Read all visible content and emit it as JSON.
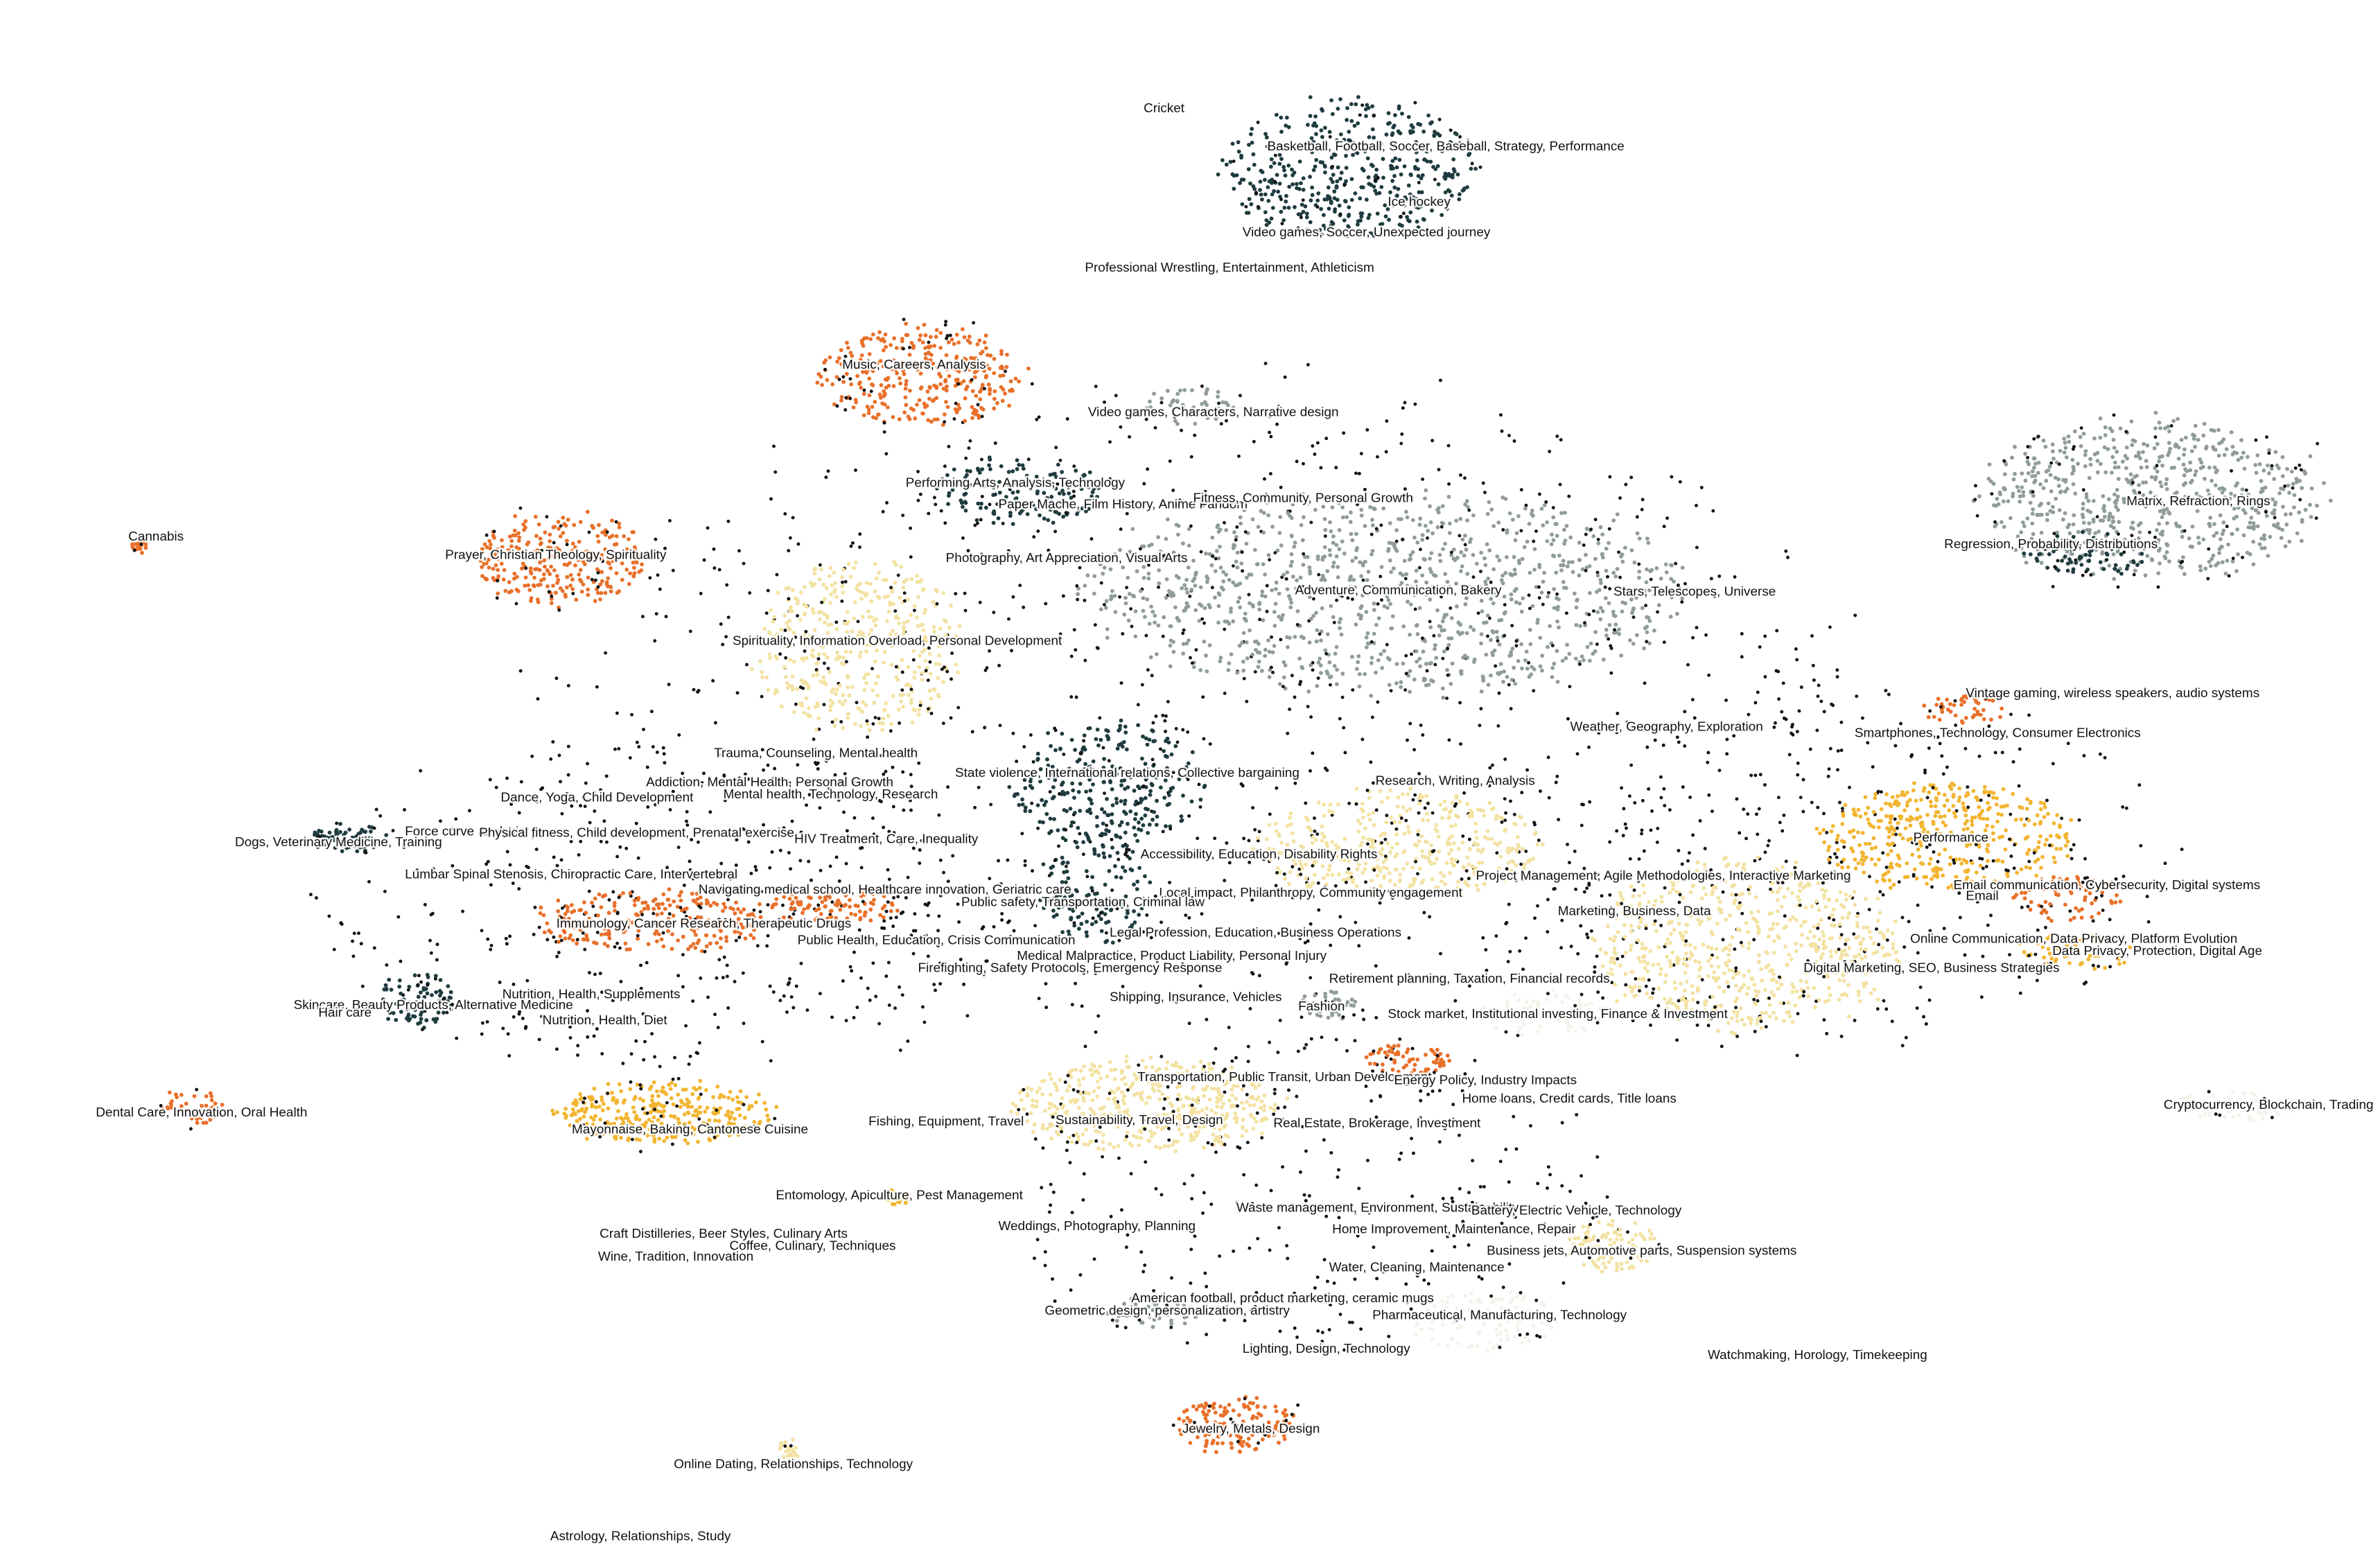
{
  "chart_data": {
    "type": "scatter",
    "title": "",
    "xlabel": "",
    "ylabel": "",
    "grid": false,
    "axes": false,
    "legend": "none",
    "xlim": [
      0,
      1540
    ],
    "ylim": [
      1010,
      0
    ],
    "palette": {
      "dark_teal": "#1f3b3f",
      "slate": "#8f9c9a",
      "orange": "#e8702a",
      "yellow": "#f2b531",
      "cream": "#f3e2a2",
      "pale": "#f2f3ea",
      "outlier": "#111111"
    },
    "clusters": [
      {
        "x": 872,
        "y": 110,
        "rx": 80,
        "ry": 45,
        "color": "dark_teal",
        "weight": 900
      },
      {
        "x": 596,
        "y": 245,
        "rx": 65,
        "ry": 32,
        "color": "orange",
        "weight": 700
      },
      {
        "x": 362,
        "y": 365,
        "rx": 55,
        "ry": 30,
        "color": "orange",
        "weight": 600
      },
      {
        "x": 1390,
        "y": 325,
        "rx": 110,
        "ry": 50,
        "color": "slate",
        "weight": 1400
      },
      {
        "x": 900,
        "y": 385,
        "rx": 190,
        "ry": 65,
        "color": "slate",
        "weight": 2200
      },
      {
        "x": 770,
        "y": 265,
        "rx": 30,
        "ry": 12,
        "color": "slate",
        "weight": 120
      },
      {
        "x": 660,
        "y": 320,
        "rx": 55,
        "ry": 22,
        "color": "dark_teal",
        "weight": 300
      },
      {
        "x": 555,
        "y": 420,
        "rx": 65,
        "ry": 55,
        "color": "cream",
        "weight": 900
      },
      {
        "x": 718,
        "y": 510,
        "rx": 60,
        "ry": 40,
        "color": "dark_teal",
        "weight": 600
      },
      {
        "x": 710,
        "y": 580,
        "rx": 35,
        "ry": 35,
        "color": "dark_teal",
        "weight": 300
      },
      {
        "x": 1260,
        "y": 545,
        "rx": 80,
        "ry": 35,
        "color": "yellow",
        "weight": 900
      },
      {
        "x": 1270,
        "y": 462,
        "rx": 25,
        "ry": 10,
        "color": "orange",
        "weight": 100
      },
      {
        "x": 1130,
        "y": 615,
        "rx": 100,
        "ry": 55,
        "color": "cream",
        "weight": 1400
      },
      {
        "x": 905,
        "y": 550,
        "rx": 90,
        "ry": 35,
        "color": "cream",
        "weight": 900
      },
      {
        "x": 742,
        "y": 720,
        "rx": 85,
        "ry": 30,
        "color": "cream",
        "weight": 1000
      },
      {
        "x": 430,
        "y": 725,
        "rx": 70,
        "ry": 20,
        "color": "yellow",
        "weight": 700
      },
      {
        "x": 420,
        "y": 600,
        "rx": 75,
        "ry": 20,
        "color": "orange",
        "weight": 500
      },
      {
        "x": 540,
        "y": 590,
        "rx": 45,
        "ry": 10,
        "color": "orange",
        "weight": 200
      },
      {
        "x": 800,
        "y": 928,
        "rx": 40,
        "ry": 18,
        "color": "orange",
        "weight": 300
      },
      {
        "x": 910,
        "y": 690,
        "rx": 28,
        "ry": 10,
        "color": "orange",
        "weight": 140
      },
      {
        "x": 1045,
        "y": 810,
        "rx": 30,
        "ry": 18,
        "color": "cream",
        "weight": 200
      },
      {
        "x": 270,
        "y": 650,
        "rx": 25,
        "ry": 18,
        "color": "dark_teal",
        "weight": 180
      },
      {
        "x": 125,
        "y": 720,
        "rx": 20,
        "ry": 12,
        "color": "orange",
        "weight": 80
      },
      {
        "x": 226,
        "y": 545,
        "rx": 25,
        "ry": 10,
        "color": "dark_teal",
        "weight": 120
      },
      {
        "x": 1340,
        "y": 585,
        "rx": 35,
        "ry": 15,
        "color": "orange",
        "weight": 150
      },
      {
        "x": 1340,
        "y": 620,
        "rx": 40,
        "ry": 12,
        "color": "yellow",
        "weight": 120
      },
      {
        "x": 960,
        "y": 860,
        "rx": 45,
        "ry": 20,
        "color": "pale",
        "weight": 250
      },
      {
        "x": 1450,
        "y": 720,
        "rx": 45,
        "ry": 10,
        "color": "pale",
        "weight": 120
      },
      {
        "x": 1000,
        "y": 660,
        "rx": 40,
        "ry": 15,
        "color": "pale",
        "weight": 150
      },
      {
        "x": 860,
        "y": 655,
        "rx": 18,
        "ry": 10,
        "color": "slate",
        "weight": 80
      },
      {
        "x": 745,
        "y": 855,
        "rx": 30,
        "ry": 10,
        "color": "slate",
        "weight": 100
      },
      {
        "x": 1350,
        "y": 360,
        "rx": 40,
        "ry": 15,
        "color": "dark_teal",
        "weight": 150
      },
      {
        "x": 510,
        "y": 945,
        "rx": 8,
        "ry": 8,
        "color": "cream",
        "weight": 30
      },
      {
        "x": 90,
        "y": 356,
        "rx": 6,
        "ry": 4,
        "color": "orange",
        "weight": 15
      },
      {
        "x": 580,
        "y": 780,
        "rx": 10,
        "ry": 5,
        "color": "yellow",
        "weight": 25
      }
    ],
    "outlier_bands": [
      {
        "x": 780,
        "y": 470,
        "rx": 420,
        "ry": 220,
        "weight": 1800
      },
      {
        "x": 1180,
        "y": 560,
        "rx": 230,
        "ry": 120,
        "weight": 600
      },
      {
        "x": 430,
        "y": 590,
        "rx": 230,
        "ry": 110,
        "weight": 700
      },
      {
        "x": 850,
        "y": 780,
        "rx": 200,
        "ry": 100,
        "weight": 500
      }
    ],
    "labels": [
      {
        "text": "Cricket",
        "x": 740,
        "y": 73
      },
      {
        "text": "Basketball, Football, Soccer, Baseball, Strategy, Performance",
        "x": 820,
        "y": 98
      },
      {
        "text": "Ice hockey",
        "x": 898,
        "y": 134
      },
      {
        "text": "Video games, Soccer, Unexpected journey",
        "x": 804,
        "y": 154
      },
      {
        "text": "Professional Wrestling, Entertainment, Athleticism",
        "x": 702,
        "y": 177
      },
      {
        "text": "Music, Careers, Analysis",
        "x": 545,
        "y": 240
      },
      {
        "text": "Video games, Characters, Narrative design",
        "x": 704,
        "y": 271
      },
      {
        "text": "Performing Arts, Analysis, Technology",
        "x": 586,
        "y": 317
      },
      {
        "text": "Paper Mache, Film History, Anime Fandom",
        "x": 646,
        "y": 331
      },
      {
        "text": "Fitness, Community, Personal Growth",
        "x": 772,
        "y": 327
      },
      {
        "text": "Matrix, Refraction, Rings",
        "x": 1376,
        "y": 329
      },
      {
        "text": "Cannabis",
        "x": 83,
        "y": 352
      },
      {
        "text": "Prayer, Christian Theology, Spirituality",
        "x": 288,
        "y": 364
      },
      {
        "text": "Regression, Probability, Distributions",
        "x": 1258,
        "y": 357
      },
      {
        "text": "Photography, Art Appreciation, Visual Arts",
        "x": 612,
        "y": 366
      },
      {
        "text": "Adventure, Communication, Bakery",
        "x": 838,
        "y": 387
      },
      {
        "text": "Stars, Telescopes, Universe",
        "x": 1044,
        "y": 388
      },
      {
        "text": "Spirituality, Information Overload, Personal Development",
        "x": 474,
        "y": 420
      },
      {
        "text": "Vintage gaming, wireless speakers, audio systems",
        "x": 1272,
        "y": 454
      },
      {
        "text": "Weather, Geography, Exploration",
        "x": 1016,
        "y": 476
      },
      {
        "text": "Smartphones, Technology, Consumer Electronics",
        "x": 1200,
        "y": 480
      },
      {
        "text": "Trauma, Counseling, Mental health",
        "x": 462,
        "y": 493
      },
      {
        "text": "State violence, International relations, Collective bargaining",
        "x": 618,
        "y": 506
      },
      {
        "text": "Addiction, Mental Health, Personal Growth",
        "x": 418,
        "y": 512
      },
      {
        "text": "Research, Writing, Analysis",
        "x": 890,
        "y": 511
      },
      {
        "text": "Mental health, Technology, Research",
        "x": 468,
        "y": 520
      },
      {
        "text": "Dance, Yoga, Child Development",
        "x": 324,
        "y": 522
      },
      {
        "text": "Force curve analysis",
        "x": 262,
        "y": 544
      },
      {
        "text": "Physical fitness, Child development, Prenatal exercise",
        "x": 310,
        "y": 545
      },
      {
        "text": "Performance",
        "x": 1238,
        "y": 548
      },
      {
        "text": "HIV Treatment, Care, Inequality",
        "x": 514,
        "y": 549
      },
      {
        "text": "Dogs, Veterinary Medicine, Training",
        "x": 152,
        "y": 551
      },
      {
        "text": "Accessibility, Education, Disability Rights",
        "x": 738,
        "y": 559
      },
      {
        "text": "Lumbar Spinal Stenosis, Chiropractic Care, Intervertebral",
        "x": 262,
        "y": 572
      },
      {
        "text": "Project Management, Agile Methodologies, Interactive Marketing",
        "x": 955,
        "y": 573
      },
      {
        "text": "Email communication, Cybersecurity, Digital systems",
        "x": 1264,
        "y": 579
      },
      {
        "text": "Navigating medical school, Healthcare innovation, Geriatric care",
        "x": 452,
        "y": 582
      },
      {
        "text": "Local impact, Philanthropy, Community engagement",
        "x": 750,
        "y": 584
      },
      {
        "text": "Email",
        "x": 1272,
        "y": 586
      },
      {
        "text": "Public safety, Transportation, Criminal law",
        "x": 622,
        "y": 590
      },
      {
        "text": "Marketing, Business, Data",
        "x": 1008,
        "y": 596
      },
      {
        "text": "Immunology, Cancer Research, Therapeutic Drugs",
        "x": 360,
        "y": 604
      },
      {
        "text": "Legal Profession, Education, Business Operations",
        "x": 718,
        "y": 610
      },
      {
        "text": "Online Communication, Data Privacy, Platform Evolution",
        "x": 1236,
        "y": 614
      },
      {
        "text": "Public Health, Education, Crisis Communication",
        "x": 516,
        "y": 615
      },
      {
        "text": "Data Privacy, Protection, Digital Age",
        "x": 1328,
        "y": 622
      },
      {
        "text": "Medical Malpractice, Product Liability, Personal Injury",
        "x": 658,
        "y": 625
      },
      {
        "text": "Firefighting, Safety Protocols, Emergency Response",
        "x": 594,
        "y": 633
      },
      {
        "text": "Digital Marketing, SEO, Business Strategies",
        "x": 1167,
        "y": 633
      },
      {
        "text": "Retirement planning, Taxation, Financial records",
        "x": 860,
        "y": 640
      },
      {
        "text": "Nutrition, Health, Supplements",
        "x": 325,
        "y": 650
      },
      {
        "text": "Shipping, Insurance, Vehicles",
        "x": 718,
        "y": 652
      },
      {
        "text": "Skincare, Beauty Products, Alternative Medicine",
        "x": 190,
        "y": 657
      },
      {
        "text": "Fashion",
        "x": 840,
        "y": 658
      },
      {
        "text": "Hair care",
        "x": 206,
        "y": 662
      },
      {
        "text": "Stock market, Institutional investing, Finance & Investment",
        "x": 898,
        "y": 663
      },
      {
        "text": "Nutrition, Health, Diet",
        "x": 351,
        "y": 667
      },
      {
        "text": "Transportation, Public Transit, Urban Development",
        "x": 736,
        "y": 704
      },
      {
        "text": "Energy Policy, Industry Impacts",
        "x": 902,
        "y": 706
      },
      {
        "text": "Home loans, Credit cards, Title loans",
        "x": 946,
        "y": 718
      },
      {
        "text": "Cryptocurrency, Blockchain, Trading",
        "x": 1400,
        "y": 722
      },
      {
        "text": "Dental Care, Innovation, Oral Health",
        "x": 62,
        "y": 727
      },
      {
        "text": "Sustainability, Travel, Design",
        "x": 683,
        "y": 732
      },
      {
        "text": "Fishing, Equipment, Travel",
        "x": 562,
        "y": 733
      },
      {
        "text": "Real Estate, Brokerage, Investment",
        "x": 824,
        "y": 734
      },
      {
        "text": "Mayonnaise, Baking, Cantonese Cuisine",
        "x": 370,
        "y": 738
      },
      {
        "text": "Entomology, Apiculture, Pest Management",
        "x": 502,
        "y": 781
      },
      {
        "text": "Waste management, Environment, Sustainability",
        "x": 800,
        "y": 789
      },
      {
        "text": "Battery, Electric Vehicle, Technology",
        "x": 952,
        "y": 791
      },
      {
        "text": "Weddings, Photography, Planning",
        "x": 646,
        "y": 801
      },
      {
        "text": "Home Improvement, Maintenance, Repair",
        "x": 862,
        "y": 803
      },
      {
        "text": "Craft Distilleries, Beer Styles, Culinary Arts",
        "x": 388,
        "y": 806
      },
      {
        "text": "Coffee, Culinary, Techniques",
        "x": 472,
        "y": 814
      },
      {
        "text": "Business jets, Automotive parts, Suspension systems",
        "x": 962,
        "y": 817
      },
      {
        "text": "Wine, Tradition, Innovation",
        "x": 387,
        "y": 821
      },
      {
        "text": "Water, Cleaning, Maintenance",
        "x": 860,
        "y": 828
      },
      {
        "text": "American football, product marketing, ceramic mugs",
        "x": 732,
        "y": 848
      },
      {
        "text": "Geometric design, personalization, artistry",
        "x": 676,
        "y": 856
      },
      {
        "text": "Pharmaceutical, Manufacturing, Technology",
        "x": 888,
        "y": 859
      },
      {
        "text": "Lighting, Design, Technology",
        "x": 804,
        "y": 881
      },
      {
        "text": "Watchmaking, Horology, Timekeeping",
        "x": 1105,
        "y": 885
      },
      {
        "text": "Jewelry, Metals, Design",
        "x": 765,
        "y": 933
      },
      {
        "text": "Online Dating, Relationships, Technology",
        "x": 436,
        "y": 956
      },
      {
        "text": "Astrology, Relationships, Study",
        "x": 356,
        "y": 1003
      }
    ]
  }
}
